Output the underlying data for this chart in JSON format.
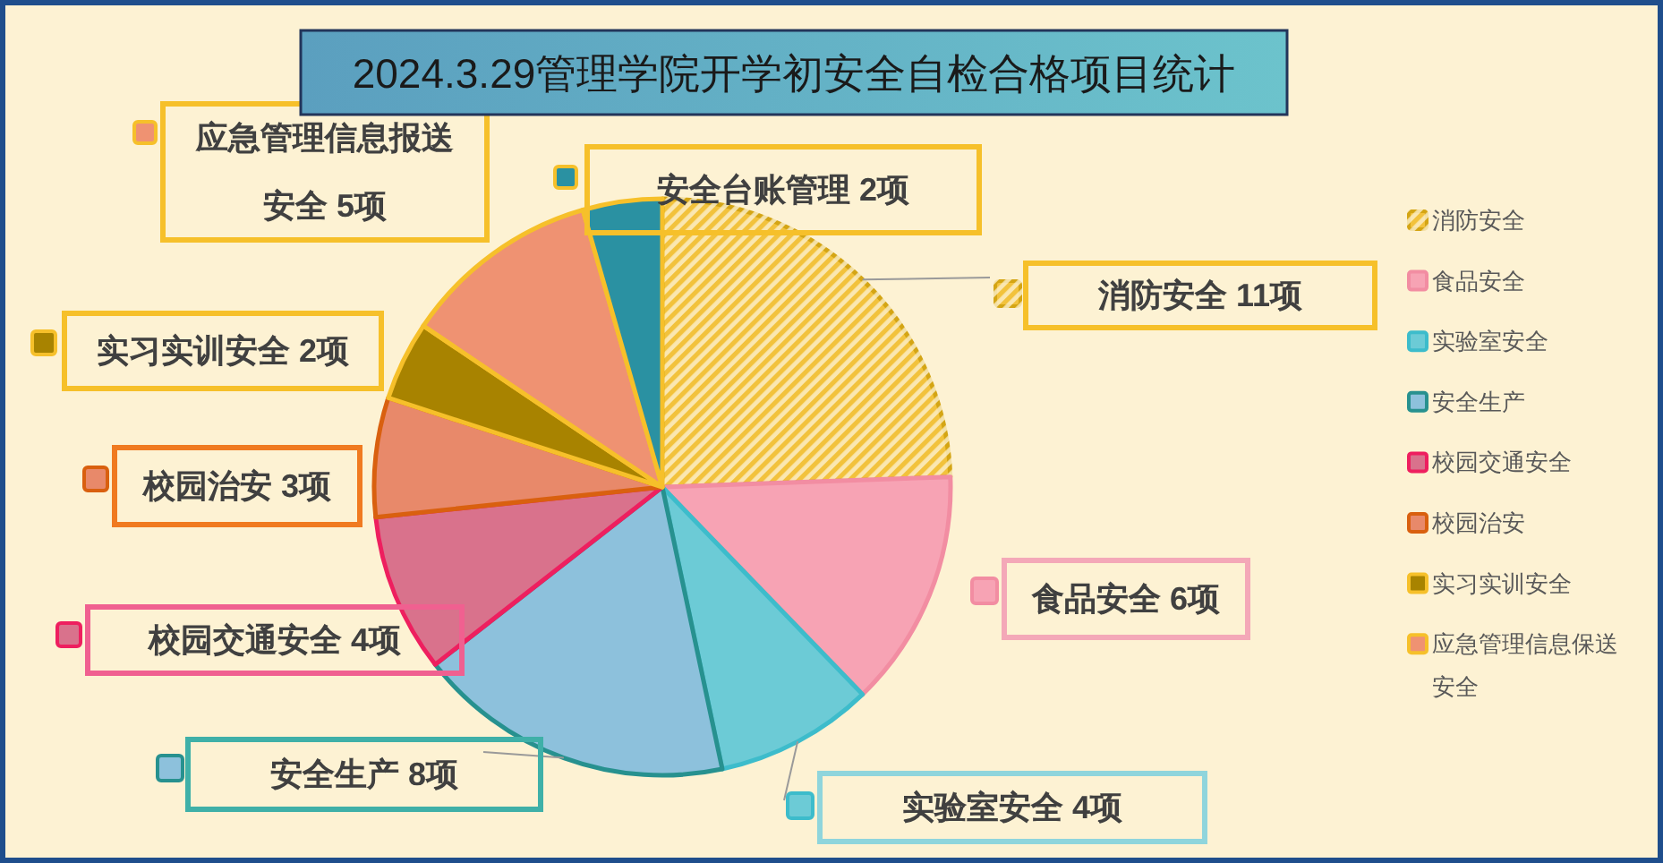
{
  "chart_data": {
    "type": "pie",
    "title": "2024.3.29管理学院开学初安全自检合格项目统计",
    "categories": [
      "消防安全",
      "食品安全",
      "实验室安全",
      "安全生产",
      "校园交通安全",
      "校园治安",
      "实习实训安全",
      "应急管理信息保送安全",
      null
    ],
    "values": [
      11,
      6,
      4,
      8,
      4,
      3,
      2,
      5,
      2
    ],
    "colors": [
      "#f2c23c",
      "#f7a3b4",
      "#6ccbd6",
      "#8dc1dc",
      "#d9728c",
      "#e8896a",
      "#a88300",
      "#ef9272",
      "#2a91a2"
    ],
    "value_labels": [
      "消防安全 11项",
      "食品安全 6项",
      "实验室安全 4项",
      "安全生产 8项",
      "校园交通安全 4项",
      "校园治安 3项",
      "实习实训安全 2项",
      "应急管理信息报送安全 5项",
      "安全台账管理 2项"
    ],
    "legend": "right"
  }
}
